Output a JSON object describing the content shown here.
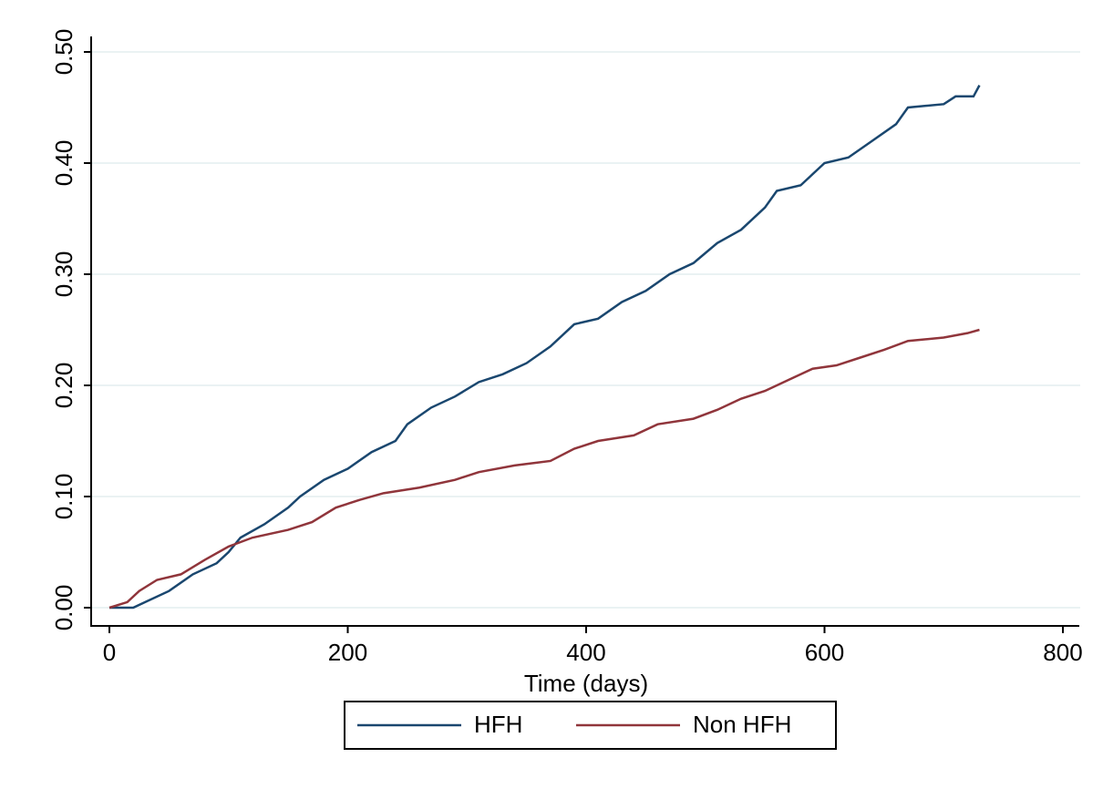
{
  "chart_data": {
    "type": "line",
    "xlabel": "Time (days)",
    "xlim": [
      0,
      800
    ],
    "xticks": [
      0,
      200,
      400,
      600,
      800
    ],
    "ylim": [
      0,
      0.5
    ],
    "yticks": [
      {
        "value": 0,
        "label": "0.00"
      },
      {
        "value": 0.1,
        "label": "0.10"
      },
      {
        "value": 0.2,
        "label": "0.20"
      },
      {
        "value": 0.3,
        "label": "0.30"
      },
      {
        "value": 0.4,
        "label": "0.40"
      },
      {
        "value": 0.5,
        "label": "0.50"
      }
    ],
    "grid": true,
    "legend": "bottom",
    "series": [
      {
        "name": "HFH",
        "color": "#1a476f",
        "x": [
          0,
          20,
          30,
          50,
          70,
          90,
          100,
          110,
          130,
          150,
          160,
          180,
          200,
          220,
          240,
          250,
          270,
          290,
          310,
          330,
          350,
          370,
          390,
          410,
          430,
          450,
          470,
          490,
          510,
          530,
          550,
          560,
          580,
          600,
          620,
          640,
          660,
          670,
          700,
          710,
          725,
          730
        ],
        "values": [
          0,
          0,
          0.005,
          0.015,
          0.03,
          0.04,
          0.05,
          0.063,
          0.075,
          0.09,
          0.1,
          0.115,
          0.125,
          0.14,
          0.15,
          0.165,
          0.18,
          0.19,
          0.203,
          0.21,
          0.22,
          0.235,
          0.255,
          0.26,
          0.275,
          0.285,
          0.3,
          0.31,
          0.328,
          0.34,
          0.36,
          0.375,
          0.38,
          0.4,
          0.405,
          0.42,
          0.435,
          0.45,
          0.453,
          0.46,
          0.46,
          0.47
        ]
      },
      {
        "name": "Non HFH",
        "color": "#90353b",
        "x": [
          0,
          15,
          25,
          40,
          60,
          80,
          100,
          120,
          150,
          170,
          190,
          210,
          230,
          260,
          290,
          310,
          340,
          370,
          390,
          410,
          440,
          460,
          490,
          510,
          530,
          550,
          570,
          590,
          610,
          630,
          650,
          670,
          700,
          720,
          730
        ],
        "values": [
          0,
          0.005,
          0.015,
          0.025,
          0.03,
          0.043,
          0.055,
          0.063,
          0.07,
          0.077,
          0.09,
          0.097,
          0.103,
          0.108,
          0.115,
          0.122,
          0.128,
          0.132,
          0.143,
          0.15,
          0.155,
          0.165,
          0.17,
          0.178,
          0.188,
          0.195,
          0.205,
          0.215,
          0.218,
          0.225,
          0.232,
          0.24,
          0.243,
          0.247,
          0.25
        ]
      }
    ]
  }
}
